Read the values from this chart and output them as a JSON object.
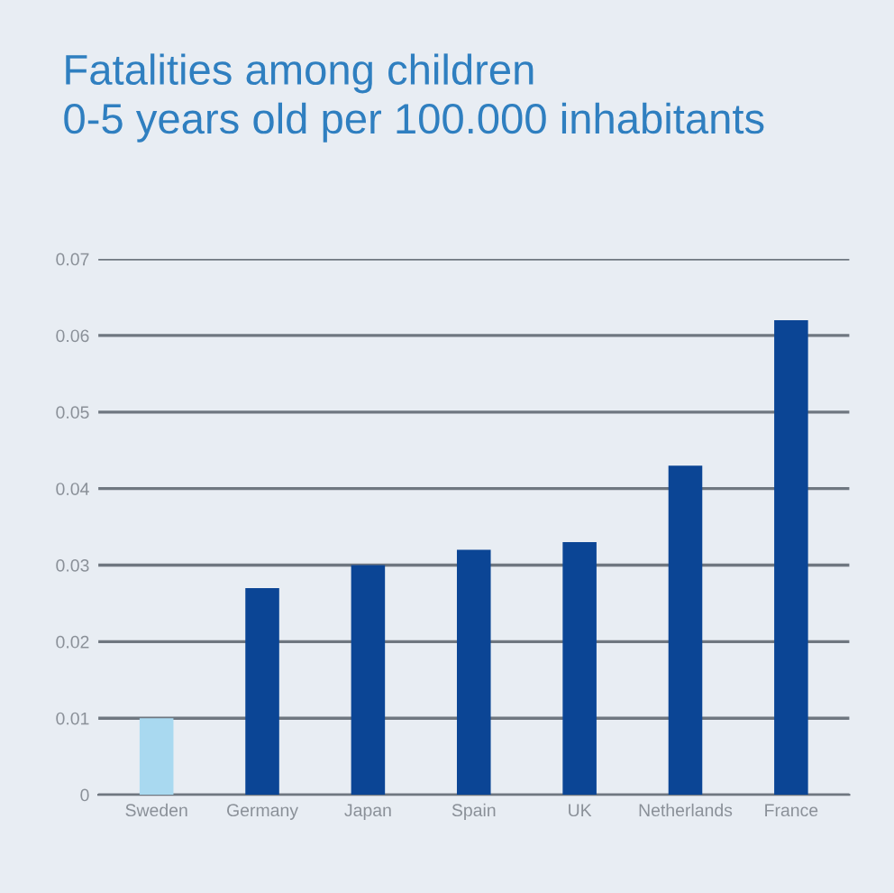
{
  "chart_data": {
    "type": "bar",
    "title": "Fatalities among children\n0-5 years old per 100.000 inhabitants",
    "categories": [
      "Sweden",
      "Germany",
      "Japan",
      "Spain",
      "UK",
      "Netherlands",
      "France"
    ],
    "values": [
      0.01,
      0.027,
      0.03,
      0.032,
      0.033,
      0.043,
      0.062
    ],
    "colors": [
      "#a9d9f0",
      "#0b4595",
      "#0b4595",
      "#0b4595",
      "#0b4595",
      "#0b4595",
      "#0b4595"
    ],
    "ylim": [
      0,
      0.07
    ],
    "yticks": [
      0,
      0.01,
      0.02,
      0.03,
      0.04,
      0.05,
      0.06,
      0.07
    ],
    "grid": "y"
  }
}
